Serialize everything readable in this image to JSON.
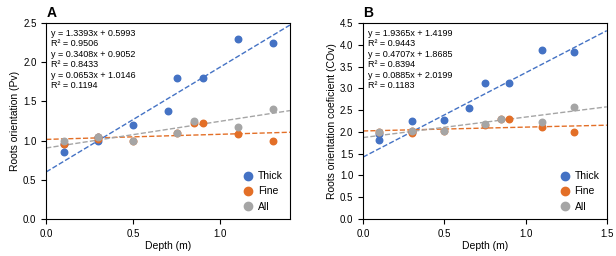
{
  "chart_data": [
    {
      "type": "scatter",
      "title": "A",
      "x_label": "Depth (m)",
      "y_label": "Roots orientation (Pv)",
      "xlim": [
        0.0,
        1.4
      ],
      "ylim": [
        0.0,
        2.5
      ],
      "xticks": [
        0.0,
        0.5,
        1.0
      ],
      "yticks": [
        0.0,
        0.5,
        1.0,
        1.5,
        2.0,
        2.5
      ],
      "grid": false,
      "legend": "lower right",
      "series": [
        {
          "name": "Thick",
          "type": "scatter",
          "marker": "o",
          "color": "#4472C4",
          "x": [
            0.1,
            0.1,
            0.3,
            0.3,
            0.5,
            0.7,
            0.75,
            0.9,
            1.1,
            1.3
          ],
          "values": [
            0.85,
            0.95,
            1.0,
            1.05,
            1.2,
            1.38,
            1.8,
            1.8,
            2.3,
            2.25
          ]
        },
        {
          "name": "Fine",
          "type": "scatter",
          "marker": "o",
          "color": "#E36F27",
          "x": [
            0.1,
            0.3,
            0.3,
            0.5,
            0.75,
            0.85,
            0.9,
            1.1,
            1.3
          ],
          "values": [
            0.95,
            1.02,
            1.05,
            1.0,
            1.1,
            1.22,
            1.22,
            1.08,
            1.0
          ]
        },
        {
          "name": "All",
          "type": "scatter",
          "marker": "o",
          "color": "#A5A5A5",
          "x": [
            0.1,
            0.3,
            0.5,
            0.75,
            0.85,
            1.1,
            1.3
          ],
          "values": [
            1.0,
            1.04,
            1.0,
            1.1,
            1.25,
            1.17,
            1.4
          ]
        },
        {
          "type": "line",
          "line_style": "dashed",
          "color": "#4472C4",
          "x": [
            0.0,
            1.4
          ],
          "values": [
            0.5993,
            2.47432
          ]
        },
        {
          "type": "line",
          "line_style": "dashed",
          "color": "#E36F27",
          "x": [
            0.0,
            1.4
          ],
          "values": [
            1.0146,
            1.10602
          ]
        },
        {
          "type": "line",
          "line_style": "dashed",
          "color": "#A5A5A5",
          "x": [
            0.0,
            1.4
          ],
          "values": [
            0.9052,
            1.38232
          ]
        }
      ],
      "annotations": [
        "y = 1.3393x + 0.5993",
        "R² = 0.9506",
        "y = 0.3408x + 0.9052",
        "R² = 0.8433",
        "y = 0.0653x + 1.0146",
        "R² = 0.1194"
      ]
    },
    {
      "type": "scatter",
      "title": "B",
      "x_label": "Depth (m)",
      "y_label": "Roots orientation coeficient (COv)",
      "xlim": [
        0.0,
        1.5
      ],
      "ylim": [
        0.0,
        4.5
      ],
      "xticks": [
        0.0,
        0.5,
        1.0,
        1.5
      ],
      "yticks": [
        0.0,
        0.5,
        1.0,
        1.5,
        2.0,
        2.5,
        3.0,
        3.5,
        4.0,
        4.5
      ],
      "grid": false,
      "legend": "lower right",
      "series": [
        {
          "name": "Thick",
          "type": "scatter",
          "marker": "o",
          "color": "#4472C4",
          "x": [
            0.1,
            0.1,
            0.3,
            0.3,
            0.5,
            0.65,
            0.75,
            0.9,
            1.1,
            1.3
          ],
          "values": [
            1.82,
            1.95,
            2.0,
            2.25,
            2.28,
            2.55,
            3.12,
            3.12,
            3.87,
            3.83
          ]
        },
        {
          "name": "Fine",
          "type": "scatter",
          "marker": "o",
          "color": "#E36F27",
          "x": [
            0.1,
            0.3,
            0.3,
            0.5,
            0.75,
            0.85,
            0.9,
            1.1,
            1.3
          ],
          "values": [
            2.0,
            1.98,
            2.02,
            2.02,
            2.15,
            2.3,
            2.3,
            2.12,
            2.0
          ]
        },
        {
          "name": "All",
          "type": "scatter",
          "marker": "o",
          "color": "#A5A5A5",
          "x": [
            0.1,
            0.3,
            0.5,
            0.75,
            0.85,
            1.1,
            1.3
          ],
          "values": [
            2.0,
            2.02,
            2.03,
            2.17,
            2.3,
            2.22,
            2.57
          ]
        },
        {
          "type": "line",
          "line_style": "dashed",
          "color": "#4472C4",
          "x": [
            0.0,
            1.5
          ],
          "values": [
            1.4199,
            4.32465
          ]
        },
        {
          "type": "line",
          "line_style": "dashed",
          "color": "#E36F27",
          "x": [
            0.0,
            1.5
          ],
          "values": [
            2.0199,
            2.15265
          ]
        },
        {
          "type": "line",
          "line_style": "dashed",
          "color": "#A5A5A5",
          "x": [
            0.0,
            1.5
          ],
          "values": [
            1.8685,
            2.57455
          ]
        }
      ],
      "annotations": [
        "y = 1.9365x + 1.4199",
        "R² = 0.9443",
        "y = 0.4707x + 1.8685",
        "R² = 0.8394",
        "y = 0.0885x + 2.0199",
        "R² = 0.1183"
      ]
    }
  ]
}
